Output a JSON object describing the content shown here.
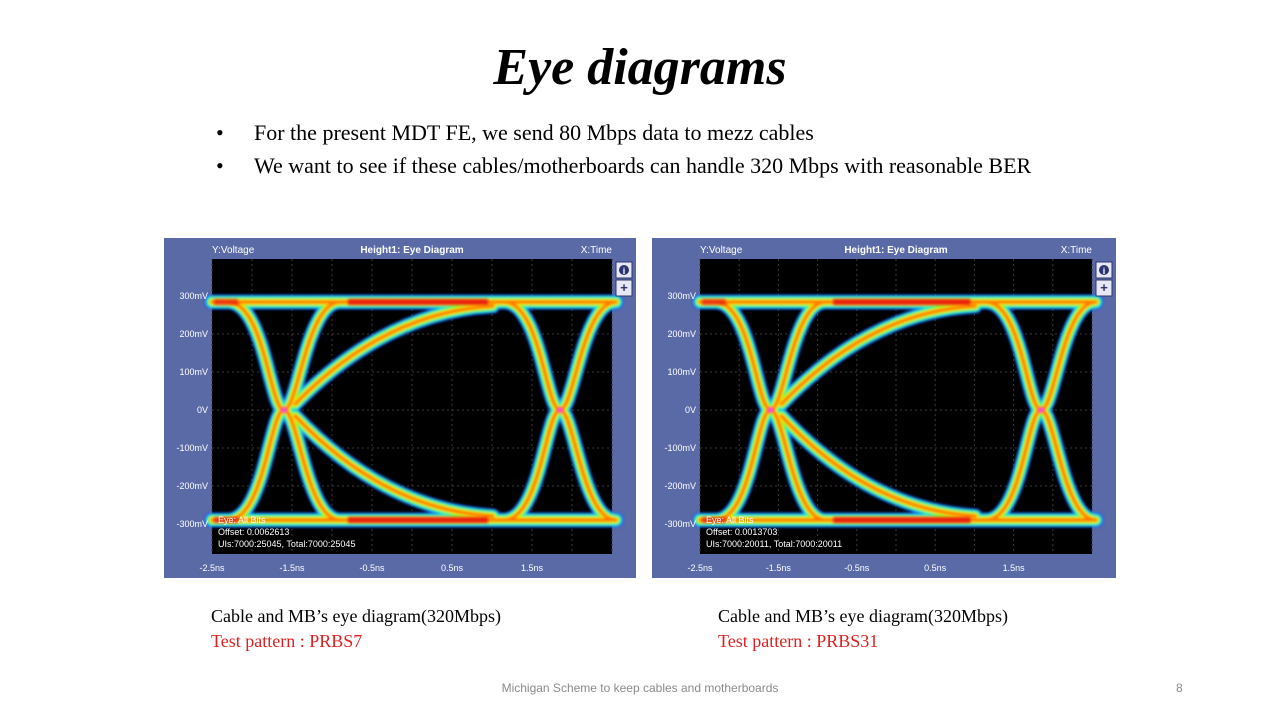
{
  "title": "Eye diagrams",
  "bullets": [
    "For the present MDT FE, we send 80 Mbps data to mezz cables",
    "We want to see if these cables/motherboards can handle 320 Mbps with reasonable BER"
  ],
  "scopes": [
    {
      "y_label_prefix": "Y:",
      "y_label": "Voltage",
      "header": "Height1: Eye Diagram",
      "x_label_prefix": "X:",
      "x_label": "Time",
      "y_ticks": [
        "300mV",
        "200mV",
        "100mV",
        "0V",
        "-100mV",
        "-200mV",
        "-300mV"
      ],
      "x_ticks": [
        "-2.5ns",
        "-1.5ns",
        "-0.5ns",
        "0.5ns",
        "1.5ns"
      ],
      "info_lines": [
        "Eye: All Bits",
        "Offset: 0.0062613",
        "UIs:7000:25045, Total:7000:25045"
      ],
      "info_button": "i",
      "zoom_button": "+"
    },
    {
      "y_label_prefix": "Y:",
      "y_label": "Voltage",
      "header": "Height1: Eye Diagram",
      "x_label_prefix": "X:",
      "x_label": "Time",
      "y_ticks": [
        "300mV",
        "200mV",
        "100mV",
        "0V",
        "-100mV",
        "-200mV",
        "-300mV"
      ],
      "x_ticks": [
        "-2.5ns",
        "-1.5ns",
        "-0.5ns",
        "0.5ns",
        "1.5ns"
      ],
      "info_lines": [
        "Eye: All Bits",
        "Offset: 0.0013703",
        "UIs:7000:20011, Total:7000:20011"
      ],
      "info_button": "i",
      "zoom_button": "+"
    }
  ],
  "captions": [
    {
      "line1": "Cable and MB’s eye diagram(320Mbps)",
      "line2": "Test pattern : PRBS7"
    },
    {
      "line1": "Cable and MB’s eye diagram(320Mbps)",
      "line2": "Test pattern : PRBS31"
    }
  ],
  "footer": "Michigan Scheme to keep cables and motherboards",
  "page_number": "8",
  "colors": {
    "scope_frame": "#5a6aa7",
    "caption_highlight": "#e02020"
  }
}
